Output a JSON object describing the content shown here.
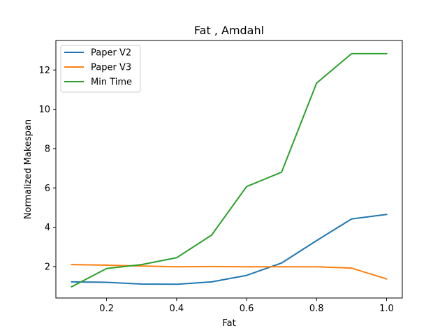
{
  "chart_data": {
    "type": "line",
    "title": "Fat , Amdahl",
    "xlabel": "Fat",
    "ylabel": "Normalized Makespan",
    "xlim": [
      0.055,
      1.045
    ],
    "ylim": [
      0.4,
      13.5
    ],
    "xticks": [
      0.2,
      0.4,
      0.6,
      0.8,
      1.0
    ],
    "xtick_labels": [
      "0.2",
      "0.4",
      "0.6",
      "0.8",
      "1.0"
    ],
    "yticks": [
      2,
      4,
      6,
      8,
      10,
      12
    ],
    "ytick_labels": [
      "2",
      "4",
      "6",
      "8",
      "10",
      "12"
    ],
    "grid": false,
    "legend_position": "top-left",
    "x": [
      0.1,
      0.2,
      0.3,
      0.4,
      0.5,
      0.6,
      0.7,
      0.8,
      0.9,
      1.0
    ],
    "series": [
      {
        "name": "Paper V2",
        "color": "#1f77b4",
        "values": [
          1.22,
          1.2,
          1.11,
          1.1,
          1.22,
          1.55,
          2.18,
          3.32,
          4.42,
          4.65
        ]
      },
      {
        "name": "Paper V3",
        "color": "#ff7f0e",
        "values": [
          2.1,
          2.07,
          2.03,
          1.99,
          2.0,
          1.99,
          1.99,
          1.99,
          1.92,
          1.37
        ]
      },
      {
        "name": "Min Time",
        "color": "#2ca02c",
        "values": [
          0.97,
          1.9,
          2.1,
          2.45,
          3.6,
          6.07,
          6.8,
          11.33,
          12.83,
          12.83
        ]
      }
    ]
  }
}
